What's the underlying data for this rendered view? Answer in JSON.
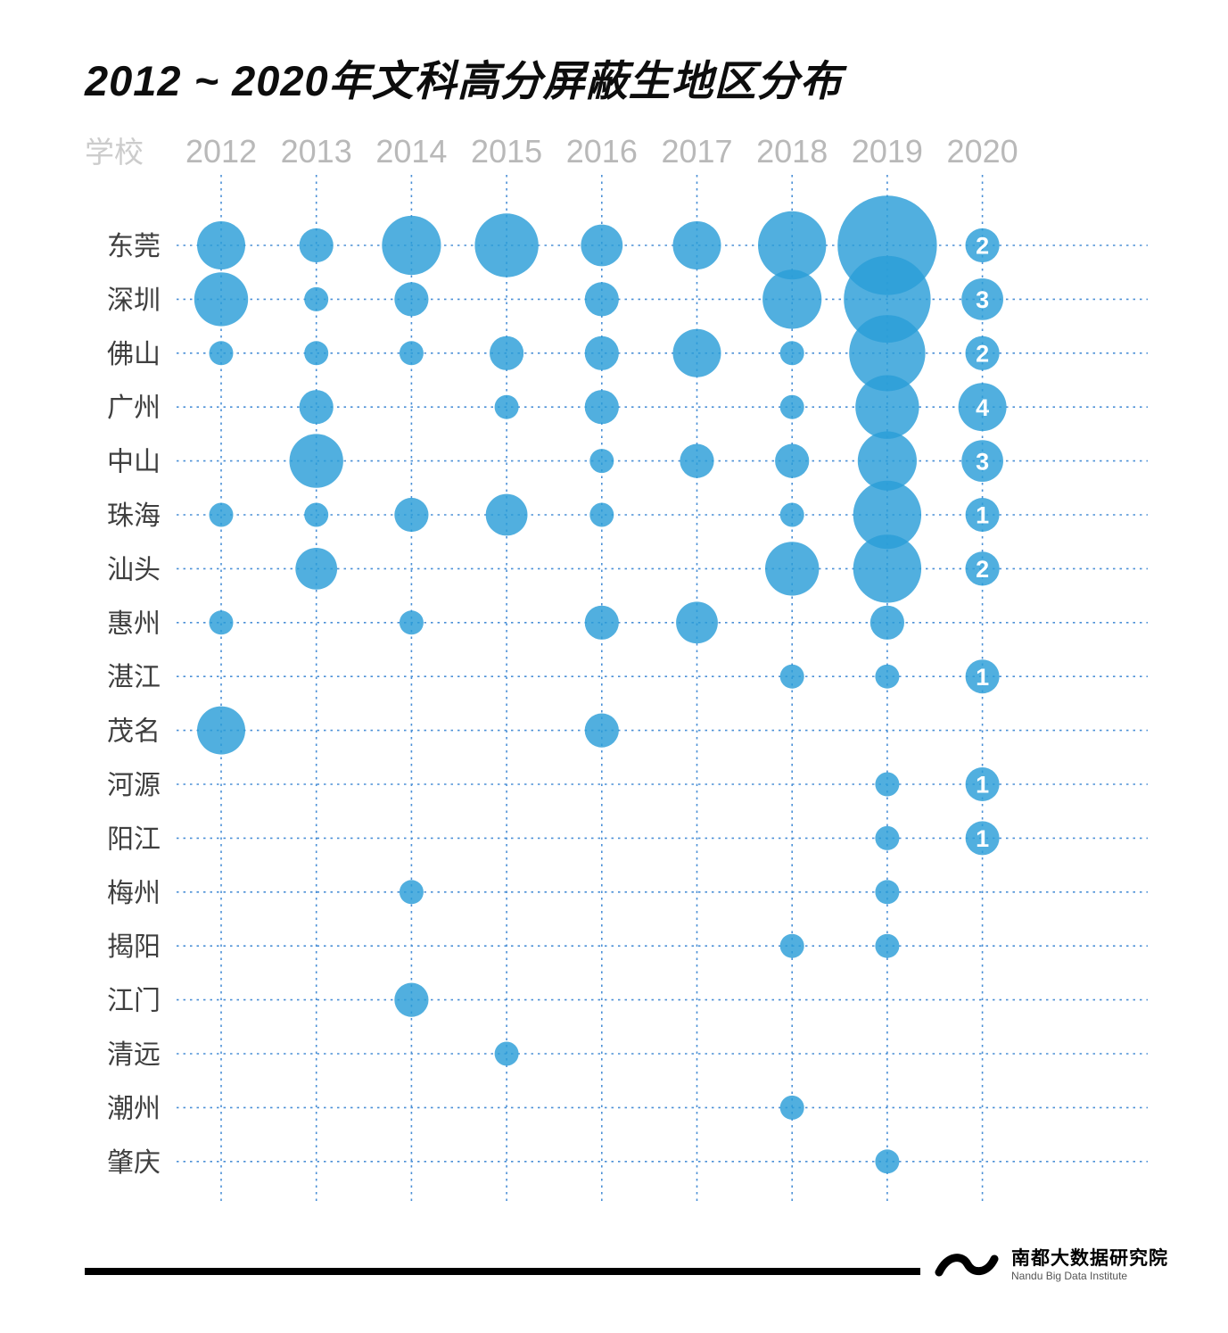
{
  "title": "2012 ~ 2020年文科高分屏蔽生地区分布",
  "corner_label": "学校",
  "colors": {
    "bubble": "#2b9ed8",
    "grid": "#4a8fd6",
    "year_label": "#b9b9b9",
    "corner_label": "#cccccc",
    "city_label": "#3f3f3f",
    "value_label": "#ffffff"
  },
  "chart_data": {
    "type": "bubble",
    "title": "2012 ~ 2020年文科高分屏蔽生地区分布",
    "x_labels": [
      "2012",
      "2013",
      "2014",
      "2015",
      "2016",
      "2017",
      "2018",
      "2019",
      "2020"
    ],
    "value_label_column": "2020",
    "rows": [
      {
        "city": "东莞",
        "values": [
          4,
          2,
          6,
          7,
          3,
          4,
          8,
          17,
          2
        ]
      },
      {
        "city": "深圳",
        "values": [
          5,
          1,
          2,
          0,
          2,
          0,
          6,
          13,
          3
        ]
      },
      {
        "city": "佛山",
        "values": [
          1,
          1,
          1,
          2,
          2,
          4,
          1,
          10,
          2
        ]
      },
      {
        "city": "广州",
        "values": [
          0,
          2,
          0,
          1,
          2,
          0,
          1,
          7,
          4
        ]
      },
      {
        "city": "中山",
        "values": [
          0,
          5,
          0,
          0,
          1,
          2,
          2,
          6,
          3
        ]
      },
      {
        "city": "珠海",
        "values": [
          1,
          1,
          2,
          3,
          1,
          0,
          1,
          8,
          1
        ]
      },
      {
        "city": "汕头",
        "values": [
          0,
          3,
          0,
          0,
          0,
          0,
          5,
          8,
          2
        ]
      },
      {
        "city": "惠州",
        "values": [
          1,
          0,
          1,
          0,
          2,
          3,
          0,
          2,
          0
        ]
      },
      {
        "city": "湛江",
        "values": [
          0,
          0,
          0,
          0,
          0,
          0,
          1,
          1,
          1
        ]
      },
      {
        "city": "茂名",
        "values": [
          4,
          0,
          0,
          0,
          2,
          0,
          0,
          0,
          0
        ]
      },
      {
        "city": "河源",
        "values": [
          0,
          0,
          0,
          0,
          0,
          0,
          0,
          1,
          1
        ]
      },
      {
        "city": "阳江",
        "values": [
          0,
          0,
          0,
          0,
          0,
          0,
          0,
          1,
          1
        ]
      },
      {
        "city": "梅州",
        "values": [
          0,
          0,
          1,
          0,
          0,
          0,
          0,
          1,
          0
        ]
      },
      {
        "city": "揭阳",
        "values": [
          0,
          0,
          0,
          0,
          0,
          0,
          1,
          1,
          0
        ]
      },
      {
        "city": "江门",
        "values": [
          0,
          0,
          2,
          0,
          0,
          0,
          0,
          0,
          0
        ]
      },
      {
        "city": "清远",
        "values": [
          0,
          0,
          0,
          1,
          0,
          0,
          0,
          0,
          0
        ]
      },
      {
        "city": "潮州",
        "values": [
          0,
          0,
          0,
          0,
          0,
          0,
          1,
          0,
          0
        ]
      },
      {
        "city": "肇庆",
        "values": [
          0,
          0,
          0,
          0,
          0,
          0,
          0,
          1,
          0
        ]
      }
    ]
  },
  "footer": {
    "brand_cn": "南都大数据研究院",
    "brand_en": "Nandu Big Data Institute"
  }
}
